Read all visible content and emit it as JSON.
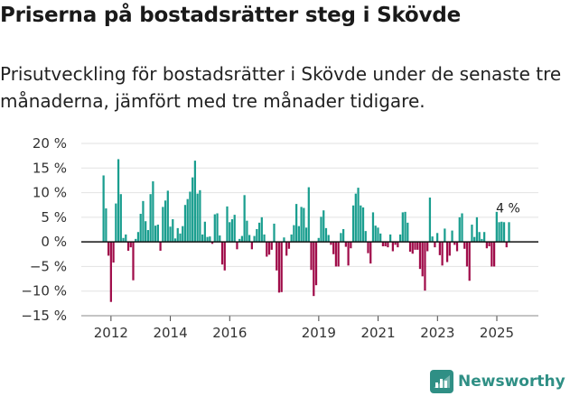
{
  "header": {
    "title": "Priserna på bostadsrätter steg i Skövde",
    "subtitle": "Prisutveckling för bostadsrätter i Skövde under de senaste tre månaderna, jämfört med tre månader tidigare."
  },
  "brand": {
    "name": "Newsworthy"
  },
  "colors": {
    "positive": "#1a9e8f",
    "negative": "#a00d4a",
    "zero_line": "#111111",
    "grid": "#e2e2e2"
  },
  "chart_data": {
    "type": "bar",
    "title": "Priserna på bostadsrätter steg i Skövde",
    "xlabel": "",
    "ylabel": "",
    "ylim": [
      -15,
      20
    ],
    "y_ticks": [
      20,
      15,
      10,
      5,
      0,
      -5,
      -10,
      -15
    ],
    "y_tick_labels": [
      "20 %",
      "15 %",
      "10 %",
      "5 %",
      "0 %",
      "−5 %",
      "−10 %",
      "−15 %"
    ],
    "x_range": [
      2011.0,
      2026.4
    ],
    "x_ticks": [
      2012,
      2014,
      2016,
      2019,
      2021,
      2023,
      2025
    ],
    "x_tick_labels": [
      "2012",
      "2014",
      "2016",
      "2019",
      "2021",
      "2023",
      "2025"
    ],
    "start": 2011.75,
    "step": 0.0833,
    "values": [
      13.5,
      6.8,
      -2.8,
      -12.2,
      -4.2,
      7.8,
      16.8,
      9.7,
      0.8,
      1.5,
      -1.8,
      -1.1,
      -7.8,
      0.6,
      2.0,
      5.7,
      8.3,
      4.2,
      2.4,
      9.7,
      12.3,
      3.3,
      3.5,
      -1.8,
      7.1,
      8.4,
      10.4,
      3.1,
      4.6,
      0.7,
      2.8,
      1.7,
      3.2,
      7.5,
      8.7,
      10.2,
      13.1,
      16.5,
      9.8,
      10.5,
      1.5,
      4.1,
      1.0,
      1.1,
      -0.4,
      5.6,
      5.8,
      1.3,
      -4.6,
      -5.8,
      7.2,
      4.0,
      4.6,
      5.5,
      -1.5,
      0.6,
      1.2,
      9.5,
      4.3,
      1.4,
      -1.5,
      1.2,
      2.6,
      3.9,
      5.0,
      1.5,
      -3.0,
      -2.6,
      -1.6,
      3.7,
      -5.8,
      -10.3,
      -10.2,
      0.9,
      -2.8,
      -1.4,
      1.5,
      3.4,
      7.7,
      3.2,
      7.1,
      6.9,
      2.9,
      11.1,
      -5.7,
      -11.0,
      -8.8,
      0.8,
      5.1,
      6.4,
      2.8,
      1.4,
      -0.6,
      -2.5,
      -5.0,
      -5.0,
      1.8,
      2.6,
      -1.0,
      -4.8,
      -1.3,
      7.4,
      9.8,
      11.0,
      7.4,
      7.0,
      2.2,
      -2.3,
      -4.4,
      6.0,
      3.3,
      2.9,
      1.7,
      -0.9,
      -0.9,
      -1.1,
      1.5,
      -1.9,
      -0.6,
      -1.1,
      1.5,
      6.0,
      6.1,
      3.9,
      -2.0,
      -2.4,
      -1.6,
      -1.6,
      -5.5,
      -7.0,
      -9.9,
      -1.9,
      9.0,
      1.1,
      -1.1,
      1.8,
      -2.7,
      -4.8,
      2.7,
      -4.1,
      -2.8,
      2.3,
      -0.6,
      -1.9,
      5.0,
      5.8,
      -1.4,
      -5.0,
      -7.9,
      3.5,
      1.0,
      5.0,
      2.0,
      0.6,
      2.0,
      -1.3,
      -0.9,
      -5.0,
      -5.0,
      6.1,
      4.0,
      4.1,
      4.0,
      -1.1,
      4.0
    ],
    "annotations": [
      {
        "text": "4 %",
        "at": "last bar"
      }
    ]
  }
}
